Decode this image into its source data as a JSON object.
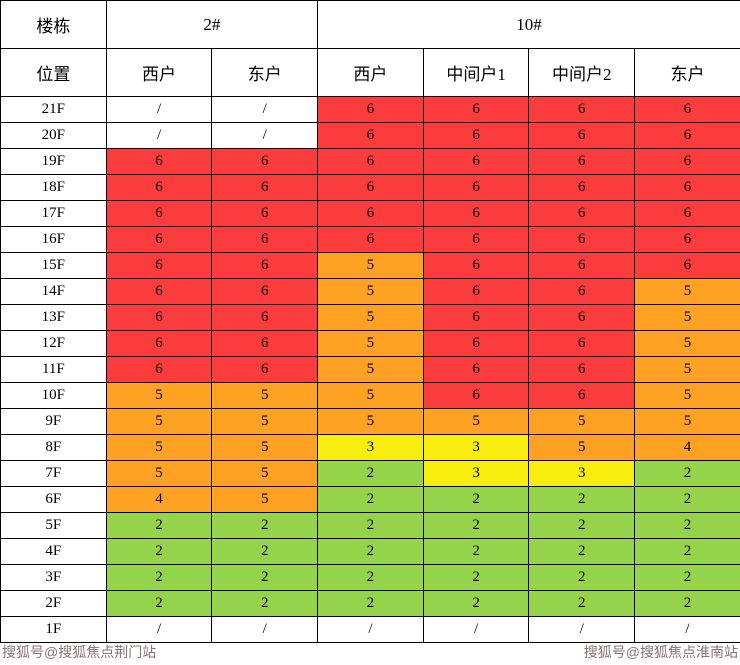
{
  "chart_data": {
    "type": "table",
    "corner_headers": {
      "building": "楼栋",
      "position": "位置"
    },
    "building_groups": [
      {
        "label": "2#",
        "span": 2
      },
      {
        "label": "10#",
        "span": 4
      }
    ],
    "unit_headers": [
      "西户",
      "东户",
      "西户",
      "中间户1",
      "中间户2",
      "东户"
    ],
    "rows": [
      {
        "floor": "21F",
        "values": [
          "/",
          "/",
          "6",
          "6",
          "6",
          "6"
        ],
        "colors": [
          "w",
          "w",
          "r",
          "r",
          "r",
          "r"
        ]
      },
      {
        "floor": "20F",
        "values": [
          "/",
          "/",
          "6",
          "6",
          "6",
          "6"
        ],
        "colors": [
          "w",
          "w",
          "r",
          "r",
          "r",
          "r"
        ]
      },
      {
        "floor": "19F",
        "values": [
          "6",
          "6",
          "6",
          "6",
          "6",
          "6"
        ],
        "colors": [
          "r",
          "r",
          "r",
          "r",
          "r",
          "r"
        ]
      },
      {
        "floor": "18F",
        "values": [
          "6",
          "6",
          "6",
          "6",
          "6",
          "6"
        ],
        "colors": [
          "r",
          "r",
          "r",
          "r",
          "r",
          "r"
        ]
      },
      {
        "floor": "17F",
        "values": [
          "6",
          "6",
          "6",
          "6",
          "6",
          "6"
        ],
        "colors": [
          "r",
          "r",
          "r",
          "r",
          "r",
          "r"
        ]
      },
      {
        "floor": "16F",
        "values": [
          "6",
          "6",
          "6",
          "6",
          "6",
          "6"
        ],
        "colors": [
          "r",
          "r",
          "r",
          "r",
          "r",
          "r"
        ]
      },
      {
        "floor": "15F",
        "values": [
          "6",
          "6",
          "5",
          "6",
          "6",
          "6"
        ],
        "colors": [
          "r",
          "r",
          "o",
          "r",
          "r",
          "r"
        ]
      },
      {
        "floor": "14F",
        "values": [
          "6",
          "6",
          "5",
          "6",
          "6",
          "5"
        ],
        "colors": [
          "r",
          "r",
          "o",
          "r",
          "r",
          "o"
        ]
      },
      {
        "floor": "13F",
        "values": [
          "6",
          "6",
          "5",
          "6",
          "6",
          "5"
        ],
        "colors": [
          "r",
          "r",
          "o",
          "r",
          "r",
          "o"
        ]
      },
      {
        "floor": "12F",
        "values": [
          "6",
          "6",
          "5",
          "6",
          "6",
          "5"
        ],
        "colors": [
          "r",
          "r",
          "o",
          "r",
          "r",
          "o"
        ]
      },
      {
        "floor": "11F",
        "values": [
          "6",
          "6",
          "5",
          "6",
          "6",
          "5"
        ],
        "colors": [
          "r",
          "r",
          "o",
          "r",
          "r",
          "o"
        ]
      },
      {
        "floor": "10F",
        "values": [
          "5",
          "5",
          "5",
          "6",
          "6",
          "5"
        ],
        "colors": [
          "o",
          "o",
          "o",
          "r",
          "r",
          "o"
        ]
      },
      {
        "floor": "9F",
        "values": [
          "5",
          "5",
          "5",
          "5",
          "5",
          "5"
        ],
        "colors": [
          "o",
          "o",
          "o",
          "o",
          "o",
          "o"
        ]
      },
      {
        "floor": "8F",
        "values": [
          "5",
          "5",
          "3",
          "3",
          "5",
          "4"
        ],
        "colors": [
          "o",
          "o",
          "y",
          "y",
          "o",
          "o"
        ]
      },
      {
        "floor": "7F",
        "values": [
          "5",
          "5",
          "2",
          "3",
          "3",
          "2"
        ],
        "colors": [
          "o",
          "o",
          "g",
          "y",
          "y",
          "g"
        ]
      },
      {
        "floor": "6F",
        "values": [
          "4",
          "5",
          "2",
          "2",
          "2",
          "2"
        ],
        "colors": [
          "o",
          "o",
          "g",
          "g",
          "g",
          "g"
        ]
      },
      {
        "floor": "5F",
        "values": [
          "2",
          "2",
          "2",
          "2",
          "2",
          "2"
        ],
        "colors": [
          "g",
          "g",
          "g",
          "g",
          "g",
          "g"
        ]
      },
      {
        "floor": "4F",
        "values": [
          "2",
          "2",
          "2",
          "2",
          "2",
          "2"
        ],
        "colors": [
          "g",
          "g",
          "g",
          "g",
          "g",
          "g"
        ]
      },
      {
        "floor": "3F",
        "values": [
          "2",
          "2",
          "2",
          "2",
          "2",
          "2"
        ],
        "colors": [
          "g",
          "g",
          "g",
          "g",
          "g",
          "g"
        ]
      },
      {
        "floor": "2F",
        "values": [
          "2",
          "2",
          "2",
          "2",
          "2",
          "2"
        ],
        "colors": [
          "g",
          "g",
          "g",
          "g",
          "g",
          "g"
        ]
      },
      {
        "floor": "1F",
        "values": [
          "/",
          "/",
          "/",
          "/",
          "/",
          "/"
        ],
        "colors": [
          "w",
          "w",
          "w",
          "w",
          "w",
          "w"
        ]
      }
    ],
    "cell_colors": {
      "r": "#fb3c3c",
      "o": "#ffa122",
      "y": "#f7ee0e",
      "g": "#95d34b",
      "w": "#ffffff"
    }
  },
  "watermarks": {
    "left": "搜狐号@搜狐焦点荆门站",
    "right": "搜狐号@搜狐焦点淮南站"
  }
}
